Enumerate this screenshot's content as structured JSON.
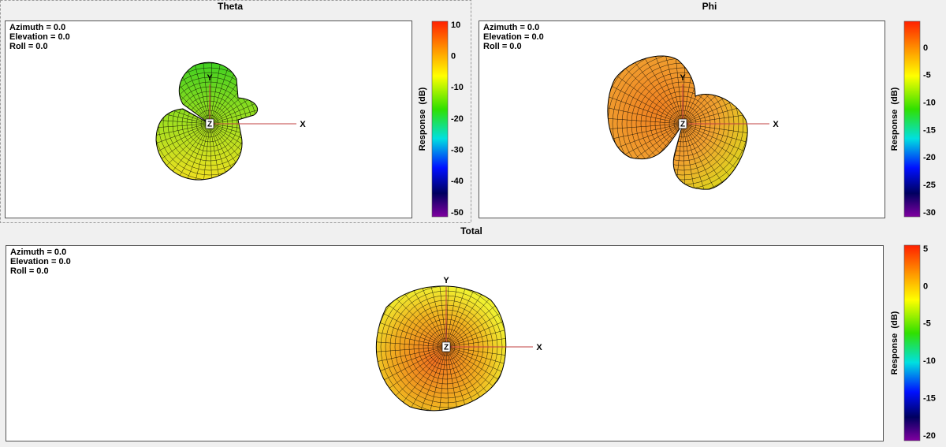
{
  "panels": [
    {
      "title": "Theta",
      "view": [
        "Azimuth = 0.0",
        "Elevation = 0.0",
        "Roll = 0.0"
      ],
      "axes": {
        "x": "X",
        "y": "Y",
        "z": "Z"
      },
      "colorbar": {
        "label": "Response  (dB)",
        "ticks": [
          "10",
          "0",
          "-10",
          "-20",
          "-30",
          "-40",
          "-50"
        ]
      }
    },
    {
      "title": "Phi",
      "view": [
        "Azimuth = 0.0",
        "Elevation = 0.0",
        "Roll = 0.0"
      ],
      "axes": {
        "x": "X",
        "y": "Y",
        "z": "Z"
      },
      "colorbar": {
        "label": "Response  (dB)",
        "ticks": [
          "0",
          "-5",
          "-10",
          "-15",
          "-20",
          "-25",
          "-30"
        ]
      }
    },
    {
      "title": "Total",
      "view": [
        "Azimuth = 0.0",
        "Elevation = 0.0",
        "Roll = 0.0"
      ],
      "axes": {
        "x": "X",
        "y": "Y",
        "z": "Z"
      },
      "colorbar": {
        "label": "Response  (dB)",
        "ticks": [
          "5",
          "0",
          "-5",
          "-10",
          "-15",
          "-20"
        ]
      }
    }
  ]
}
